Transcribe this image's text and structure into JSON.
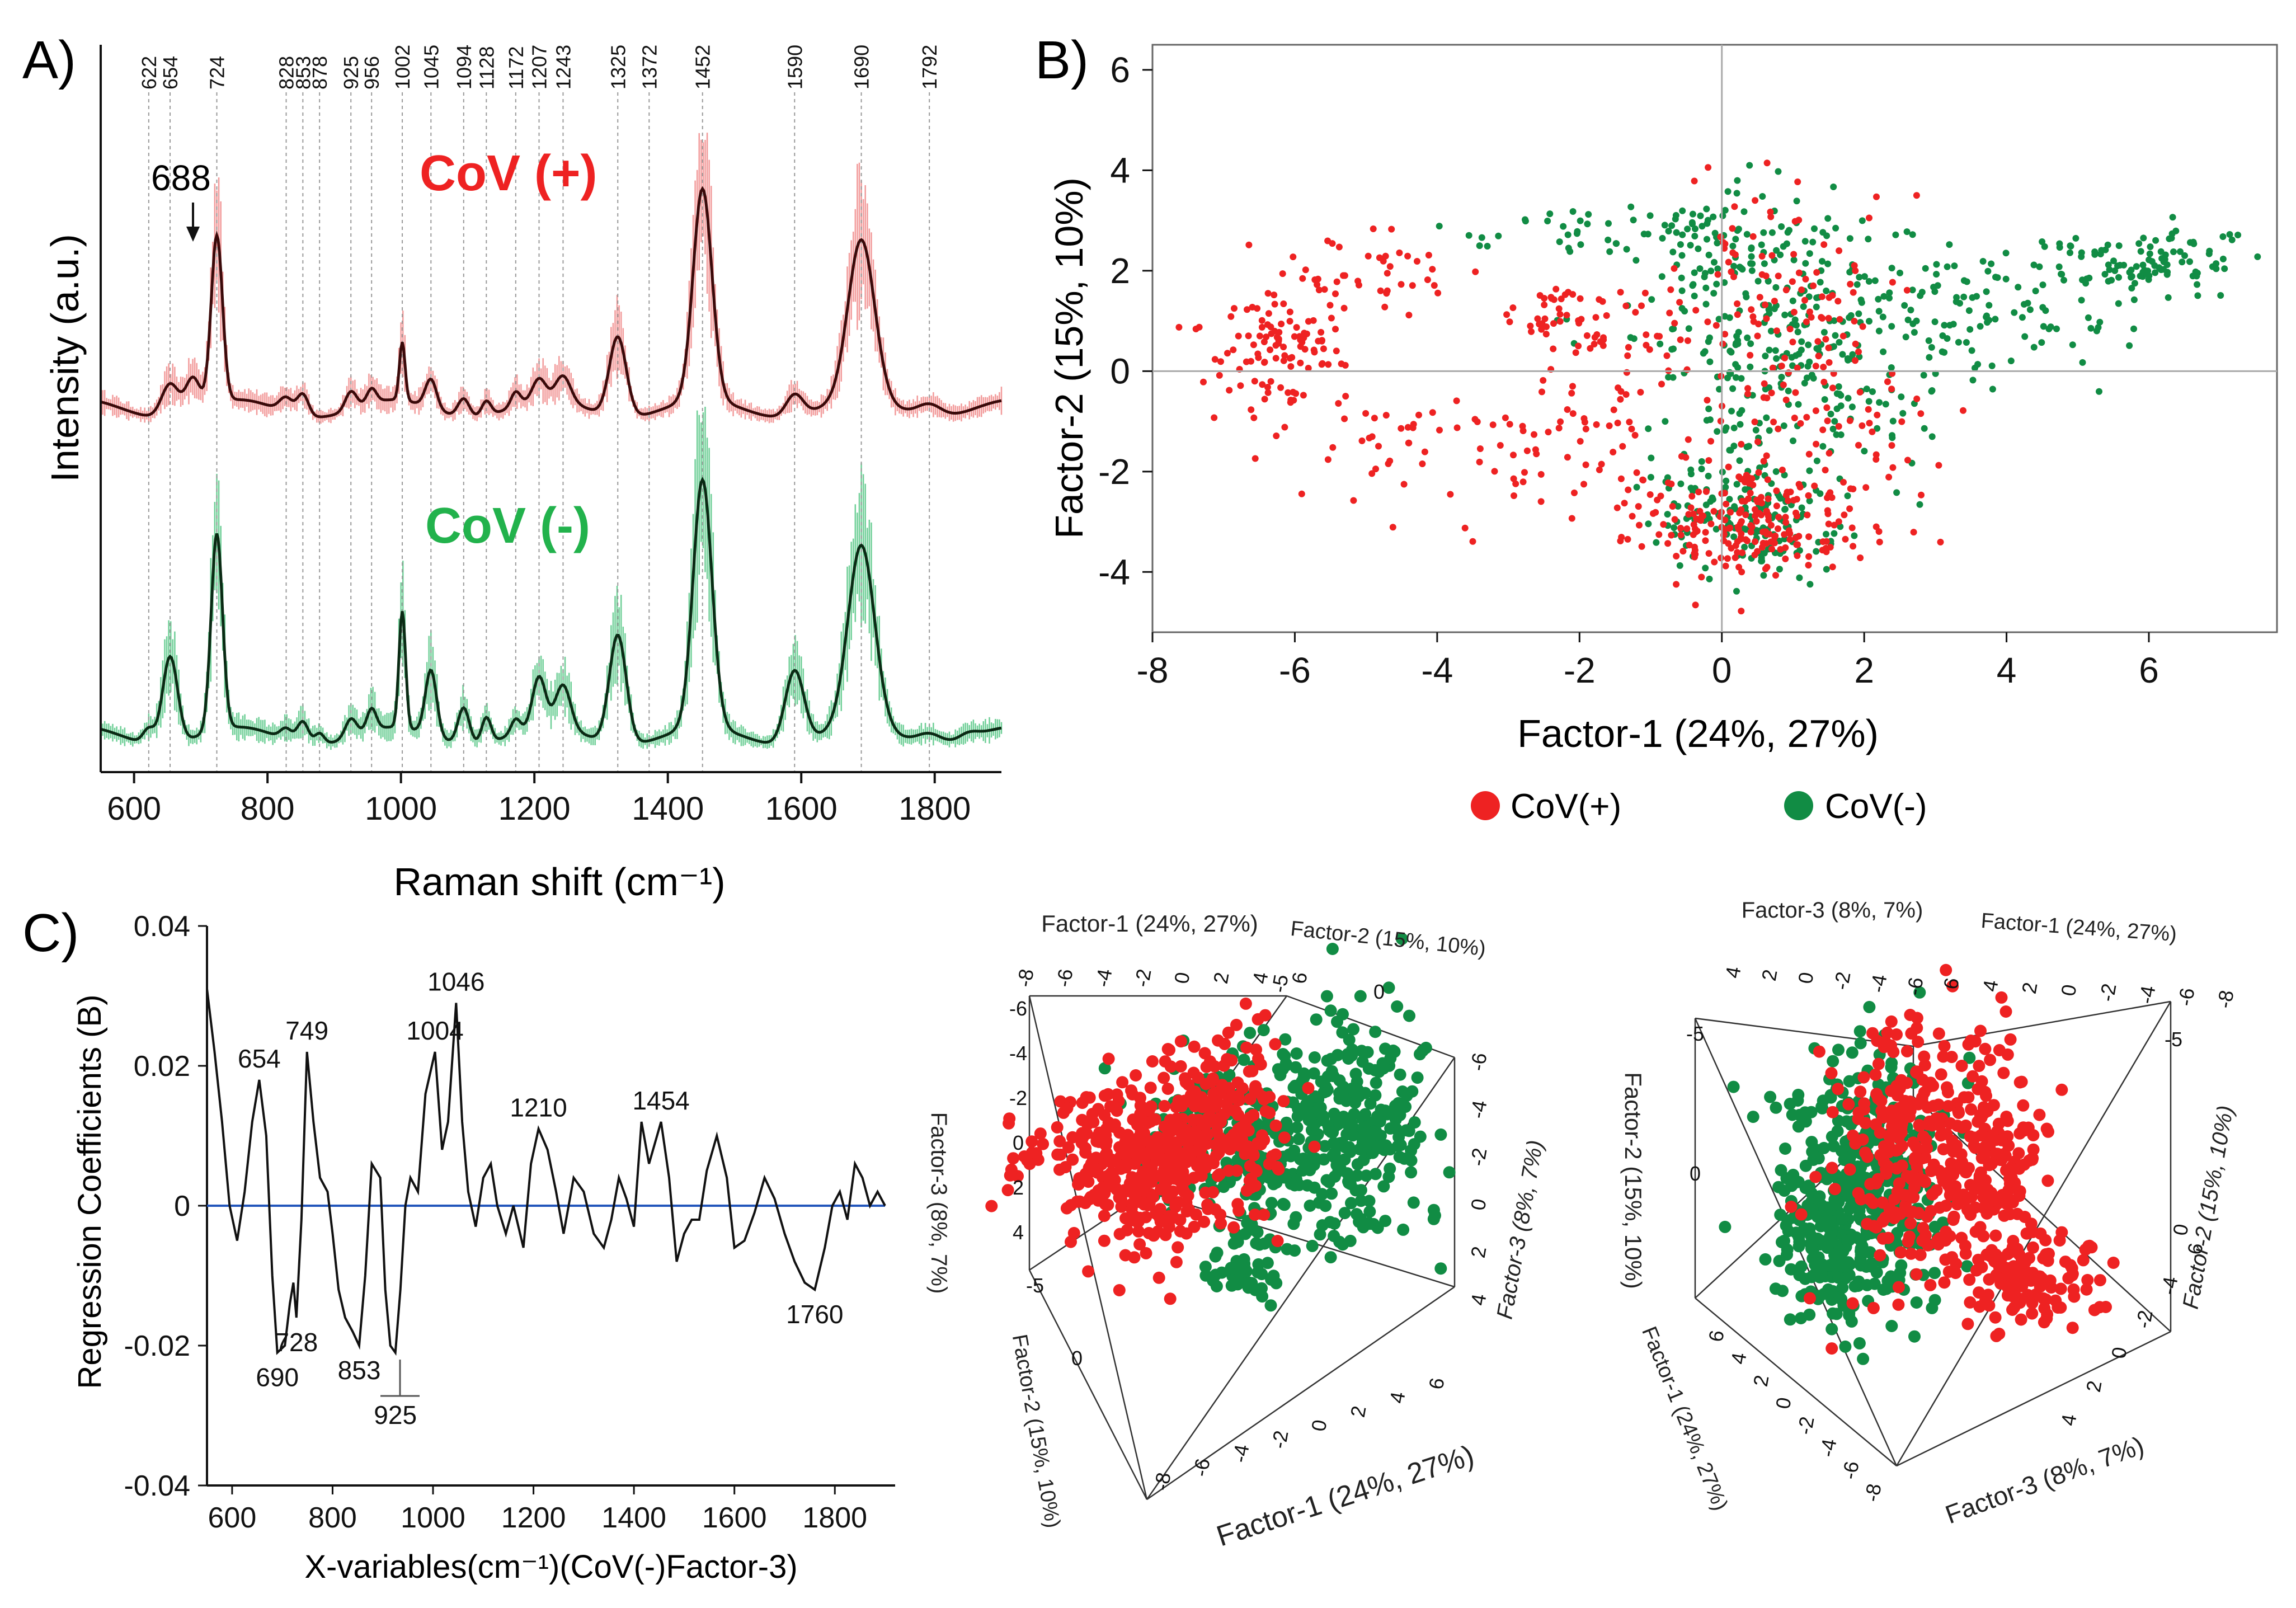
{
  "figure": {
    "panels": {
      "a": "A)",
      "b": "B)",
      "c": "C)"
    }
  },
  "colors": {
    "pos": "#ee2222",
    "neg": "#118c44",
    "pos_band": "#f29a9a",
    "neg_band": "#6fcf97",
    "line": "#111111",
    "zero": "#2255bb",
    "grid": "#aaaaaa"
  },
  "chart_data": [
    {
      "id": "A",
      "type": "line",
      "title": "",
      "xlabel": "Raman shift (cm⁻¹)",
      "ylabel": "Intensity (a.u.)",
      "xlim": [
        550,
        1900
      ],
      "ylim": [
        0,
        10
      ],
      "xticks": [
        600,
        800,
        1000,
        1200,
        1400,
        1600,
        1800
      ],
      "peak_labels": [
        622,
        654,
        724,
        828,
        853,
        878,
        925,
        956,
        1002,
        1045,
        1094,
        1128,
        1172,
        1207,
        1243,
        1325,
        1372,
        1452,
        1590,
        1690,
        1792
      ],
      "annotation": {
        "text": "688",
        "x": 688
      },
      "series": [
        {
          "name": "CoV (+)",
          "label": "CoV (+)",
          "offset": 5.0,
          "peaks": [
            {
              "x": 654,
              "h": 0.45,
              "w": 18
            },
            {
              "x": 688,
              "h": 0.45,
              "w": 15
            },
            {
              "x": 724,
              "h": 2.3,
              "w": 12
            },
            {
              "x": 828,
              "h": 0.2,
              "w": 14
            },
            {
              "x": 853,
              "h": 0.3,
              "w": 12
            },
            {
              "x": 925,
              "h": 0.25,
              "w": 12
            },
            {
              "x": 956,
              "h": 0.2,
              "w": 10
            },
            {
              "x": 1002,
              "h": 0.8,
              "w": 6
            },
            {
              "x": 1045,
              "h": 0.4,
              "w": 12
            },
            {
              "x": 1094,
              "h": 0.25,
              "w": 12
            },
            {
              "x": 1128,
              "h": 0.2,
              "w": 10
            },
            {
              "x": 1172,
              "h": 0.2,
              "w": 10
            },
            {
              "x": 1207,
              "h": 0.3,
              "w": 14
            },
            {
              "x": 1243,
              "h": 0.35,
              "w": 16
            },
            {
              "x": 1325,
              "h": 1.1,
              "w": 18
            },
            {
              "x": 1452,
              "h": 2.9,
              "w": 20
            },
            {
              "x": 1590,
              "h": 0.3,
              "w": 18
            },
            {
              "x": 1690,
              "h": 2.2,
              "w": 28
            },
            {
              "x": 1792,
              "h": 0.18,
              "w": 26
            }
          ]
        },
        {
          "name": "CoV (-)",
          "label": "CoV (-)",
          "offset": 0.5,
          "peaks": [
            {
              "x": 622,
              "h": 0.2,
              "w": 12
            },
            {
              "x": 654,
              "h": 1.2,
              "w": 16
            },
            {
              "x": 724,
              "h": 2.7,
              "w": 12
            },
            {
              "x": 828,
              "h": 0.15,
              "w": 12
            },
            {
              "x": 853,
              "h": 0.3,
              "w": 12
            },
            {
              "x": 878,
              "h": 0.15,
              "w": 10
            },
            {
              "x": 925,
              "h": 0.25,
              "w": 12
            },
            {
              "x": 956,
              "h": 0.3,
              "w": 10
            },
            {
              "x": 1002,
              "h": 1.6,
              "w": 7
            },
            {
              "x": 1045,
              "h": 0.9,
              "w": 12
            },
            {
              "x": 1094,
              "h": 0.5,
              "w": 12
            },
            {
              "x": 1128,
              "h": 0.35,
              "w": 10
            },
            {
              "x": 1172,
              "h": 0.2,
              "w": 10
            },
            {
              "x": 1207,
              "h": 0.7,
              "w": 14
            },
            {
              "x": 1243,
              "h": 0.6,
              "w": 16
            },
            {
              "x": 1325,
              "h": 1.5,
              "w": 18
            },
            {
              "x": 1452,
              "h": 3.4,
              "w": 20
            },
            {
              "x": 1590,
              "h": 1.0,
              "w": 20
            },
            {
              "x": 1690,
              "h": 2.5,
              "w": 28
            },
            {
              "x": 1792,
              "h": 0.15,
              "w": 26
            },
            {
              "x": 1850,
              "h": 0.08,
              "w": 20
            }
          ]
        }
      ]
    },
    {
      "id": "B",
      "type": "scatter",
      "title": "",
      "xlabel": "Factor-1 (24%, 27%)",
      "ylabel": "Factor-2 (15%, 10%)",
      "xlim": [
        -8,
        7.8
      ],
      "ylim": [
        -5.2,
        6.5
      ],
      "xticks": [
        -8,
        -6,
        -4,
        -2,
        0,
        2,
        4,
        6
      ],
      "yticks": [
        -4,
        -2,
        0,
        2,
        4,
        6
      ],
      "legend": [
        {
          "label": "CoV(+)"
        },
        {
          "label": "CoV(-)"
        }
      ],
      "series": [
        {
          "name": "CoV(+)",
          "n_points": 700,
          "clusters": [
            {
              "cx": -6.3,
              "cy": 0.6,
              "sx": 0.5,
              "sy": 0.7,
              "n": 110
            },
            {
              "cx": -4.9,
              "cy": 2.0,
              "sx": 0.6,
              "sy": 0.4,
              "n": 40
            },
            {
              "cx": -4.6,
              "cy": -1.6,
              "sx": 0.8,
              "sy": 0.8,
              "n": 40
            },
            {
              "cx": -1.9,
              "cy": 0.9,
              "sx": 0.6,
              "sy": 0.4,
              "n": 60
            },
            {
              "cx": -2.0,
              "cy": -1.5,
              "sx": 0.7,
              "sy": 0.7,
              "n": 60
            },
            {
              "cx": 0.4,
              "cy": -3.0,
              "sx": 0.8,
              "sy": 0.6,
              "n": 220
            },
            {
              "cx": 0.8,
              "cy": 1.2,
              "sx": 0.8,
              "sy": 1.2,
              "n": 120
            },
            {
              "cx": 1.5,
              "cy": -1.2,
              "sx": 0.8,
              "sy": 0.8,
              "n": 50
            }
          ]
        },
        {
          "name": "CoV(-)",
          "n_points": 760,
          "clusters": [
            {
              "cx": -1.2,
              "cy": 2.8,
              "sx": 1.3,
              "sy": 0.25,
              "n": 70
            },
            {
              "cx": 0.7,
              "cy": 0.8,
              "sx": 0.9,
              "sy": 1.3,
              "n": 260
            },
            {
              "cx": 0.4,
              "cy": -2.9,
              "sx": 0.7,
              "sy": 0.6,
              "n": 170
            },
            {
              "cx": 3.5,
              "cy": 1.2,
              "sx": 1.4,
              "sy": 0.6,
              "n": 120
            },
            {
              "cx": 5.9,
              "cy": 2.2,
              "sx": 0.8,
              "sy": 0.3,
              "n": 100
            },
            {
              "cx": 2.2,
              "cy": -0.7,
              "sx": 0.7,
              "sy": 0.7,
              "n": 40
            }
          ]
        }
      ]
    },
    {
      "id": "C",
      "type": "line",
      "title": "",
      "xlabel": "X-variables(cm⁻¹)(CoV(-)Factor-3)",
      "ylabel": "Regression Coefficients (B)",
      "xlim": [
        550,
        1920
      ],
      "ylim": [
        -0.04,
        0.04
      ],
      "xticks": [
        600,
        800,
        1000,
        1200,
        1400,
        1600,
        1800
      ],
      "yticks": [
        -0.04,
        -0.02,
        0,
        0.02,
        0.04
      ],
      "ytick_labels": [
        "-0.04",
        "-0.02",
        "0",
        "0.02",
        "0.04"
      ],
      "points": [
        [
          550,
          0.031
        ],
        [
          565,
          0.022
        ],
        [
          580,
          0.012
        ],
        [
          595,
          0.0
        ],
        [
          610,
          -0.005
        ],
        [
          625,
          0.002
        ],
        [
          640,
          0.012
        ],
        [
          654,
          0.018
        ],
        [
          668,
          0.01
        ],
        [
          680,
          -0.01
        ],
        [
          690,
          -0.021
        ],
        [
          705,
          -0.02
        ],
        [
          715,
          -0.014
        ],
        [
          722,
          -0.011
        ],
        [
          728,
          -0.016
        ],
        [
          738,
          -0.002
        ],
        [
          749,
          0.022
        ],
        [
          762,
          0.012
        ],
        [
          775,
          0.004
        ],
        [
          790,
          0.002
        ],
        [
          800,
          -0.004
        ],
        [
          812,
          -0.012
        ],
        [
          825,
          -0.016
        ],
        [
          840,
          -0.018
        ],
        [
          853,
          -0.02
        ],
        [
          865,
          -0.01
        ],
        [
          878,
          0.006
        ],
        [
          895,
          0.004
        ],
        [
          905,
          -0.012
        ],
        [
          915,
          -0.02
        ],
        [
          925,
          -0.021
        ],
        [
          935,
          -0.012
        ],
        [
          945,
          0.0
        ],
        [
          955,
          0.004
        ],
        [
          970,
          0.002
        ],
        [
          985,
          0.016
        ],
        [
          1004,
          0.022
        ],
        [
          1018,
          0.008
        ],
        [
          1030,
          0.012
        ],
        [
          1046,
          0.029
        ],
        [
          1058,
          0.012
        ],
        [
          1070,
          0.002
        ],
        [
          1085,
          -0.003
        ],
        [
          1100,
          0.004
        ],
        [
          1115,
          0.006
        ],
        [
          1128,
          0.0
        ],
        [
          1145,
          -0.004
        ],
        [
          1160,
          0.0
        ],
        [
          1180,
          -0.006
        ],
        [
          1195,
          0.006
        ],
        [
          1210,
          0.011
        ],
        [
          1228,
          0.008
        ],
        [
          1245,
          0.002
        ],
        [
          1260,
          -0.004
        ],
        [
          1280,
          0.004
        ],
        [
          1300,
          0.002
        ],
        [
          1320,
          -0.004
        ],
        [
          1340,
          -0.006
        ],
        [
          1355,
          -0.002
        ],
        [
          1370,
          0.004
        ],
        [
          1385,
          0.001
        ],
        [
          1400,
          -0.003
        ],
        [
          1415,
          0.012
        ],
        [
          1430,
          0.006
        ],
        [
          1454,
          0.012
        ],
        [
          1470,
          0.004
        ],
        [
          1485,
          -0.008
        ],
        [
          1500,
          -0.004
        ],
        [
          1515,
          -0.002
        ],
        [
          1530,
          -0.002
        ],
        [
          1545,
          0.005
        ],
        [
          1565,
          0.01
        ],
        [
          1585,
          0.004
        ],
        [
          1600,
          -0.006
        ],
        [
          1620,
          -0.005
        ],
        [
          1640,
          -0.001
        ],
        [
          1660,
          0.004
        ],
        [
          1680,
          0.001
        ],
        [
          1700,
          -0.004
        ],
        [
          1720,
          -0.008
        ],
        [
          1740,
          -0.011
        ],
        [
          1760,
          -0.012
        ],
        [
          1780,
          -0.006
        ],
        [
          1795,
          0.0
        ],
        [
          1810,
          0.002
        ],
        [
          1825,
          -0.002
        ],
        [
          1840,
          0.006
        ],
        [
          1855,
          0.004
        ],
        [
          1870,
          0.0
        ],
        [
          1885,
          0.002
        ],
        [
          1900,
          0.0
        ]
      ],
      "annotations": [
        {
          "text": "654",
          "x": 654,
          "y": 0.018
        },
        {
          "text": "749",
          "x": 749,
          "y": 0.022
        },
        {
          "text": "1004",
          "x": 1004,
          "y": 0.022
        },
        {
          "text": "1046",
          "x": 1046,
          "y": 0.029
        },
        {
          "text": "1210",
          "x": 1210,
          "y": 0.011
        },
        {
          "text": "1454",
          "x": 1454,
          "y": 0.012
        },
        {
          "text": "690",
          "x": 690,
          "y": -0.021
        },
        {
          "text": "728",
          "x": 728,
          "y": -0.016
        },
        {
          "text": "853",
          "x": 853,
          "y": -0.02
        },
        {
          "text": "925",
          "x": 925,
          "y": -0.021
        },
        {
          "text": "1760",
          "x": 1760,
          "y": -0.012
        }
      ]
    },
    {
      "id": "C-3D-left",
      "type": "scatter",
      "title": "",
      "axes": [
        "Factor-1 (24%, 27%)",
        "Factor-2 (15%, 10%)",
        "Factor-3 (8%, 7%)"
      ],
      "factor1_ticks": [
        "-8",
        "-6",
        "-4",
        "-2",
        "0",
        "2",
        "4",
        "6"
      ],
      "factor2_ticks": [
        "-5",
        "0"
      ],
      "factor3_ticks": [
        "-6",
        "-4",
        "-2",
        "0",
        "2",
        "4"
      ],
      "right_ticks": [
        "-6",
        "-4",
        "-2",
        "0",
        "2",
        "4"
      ],
      "series": [
        {
          "name": "CoV(+)",
          "n_points": 520
        },
        {
          "name": "CoV(-)",
          "n_points": 520
        }
      ]
    },
    {
      "id": "C-3D-right",
      "type": "scatter",
      "title": "",
      "axes": [
        "Factor-3 (8%, 7%)",
        "Factor-1 (24%, 27%)",
        "Factor-2 (15%, 10%)"
      ],
      "factor3_ticks": [
        "4",
        "2",
        "0",
        "-2",
        "-4",
        "-6"
      ],
      "factor1_ticks": [
        "6",
        "4",
        "2",
        "0",
        "-2",
        "-4",
        "-6",
        "-8"
      ],
      "factor2_ticks": [
        "-5",
        "0"
      ],
      "series": [
        {
          "name": "CoV(+)",
          "n_points": 520
        },
        {
          "name": "CoV(-)",
          "n_points": 520
        }
      ]
    }
  ]
}
